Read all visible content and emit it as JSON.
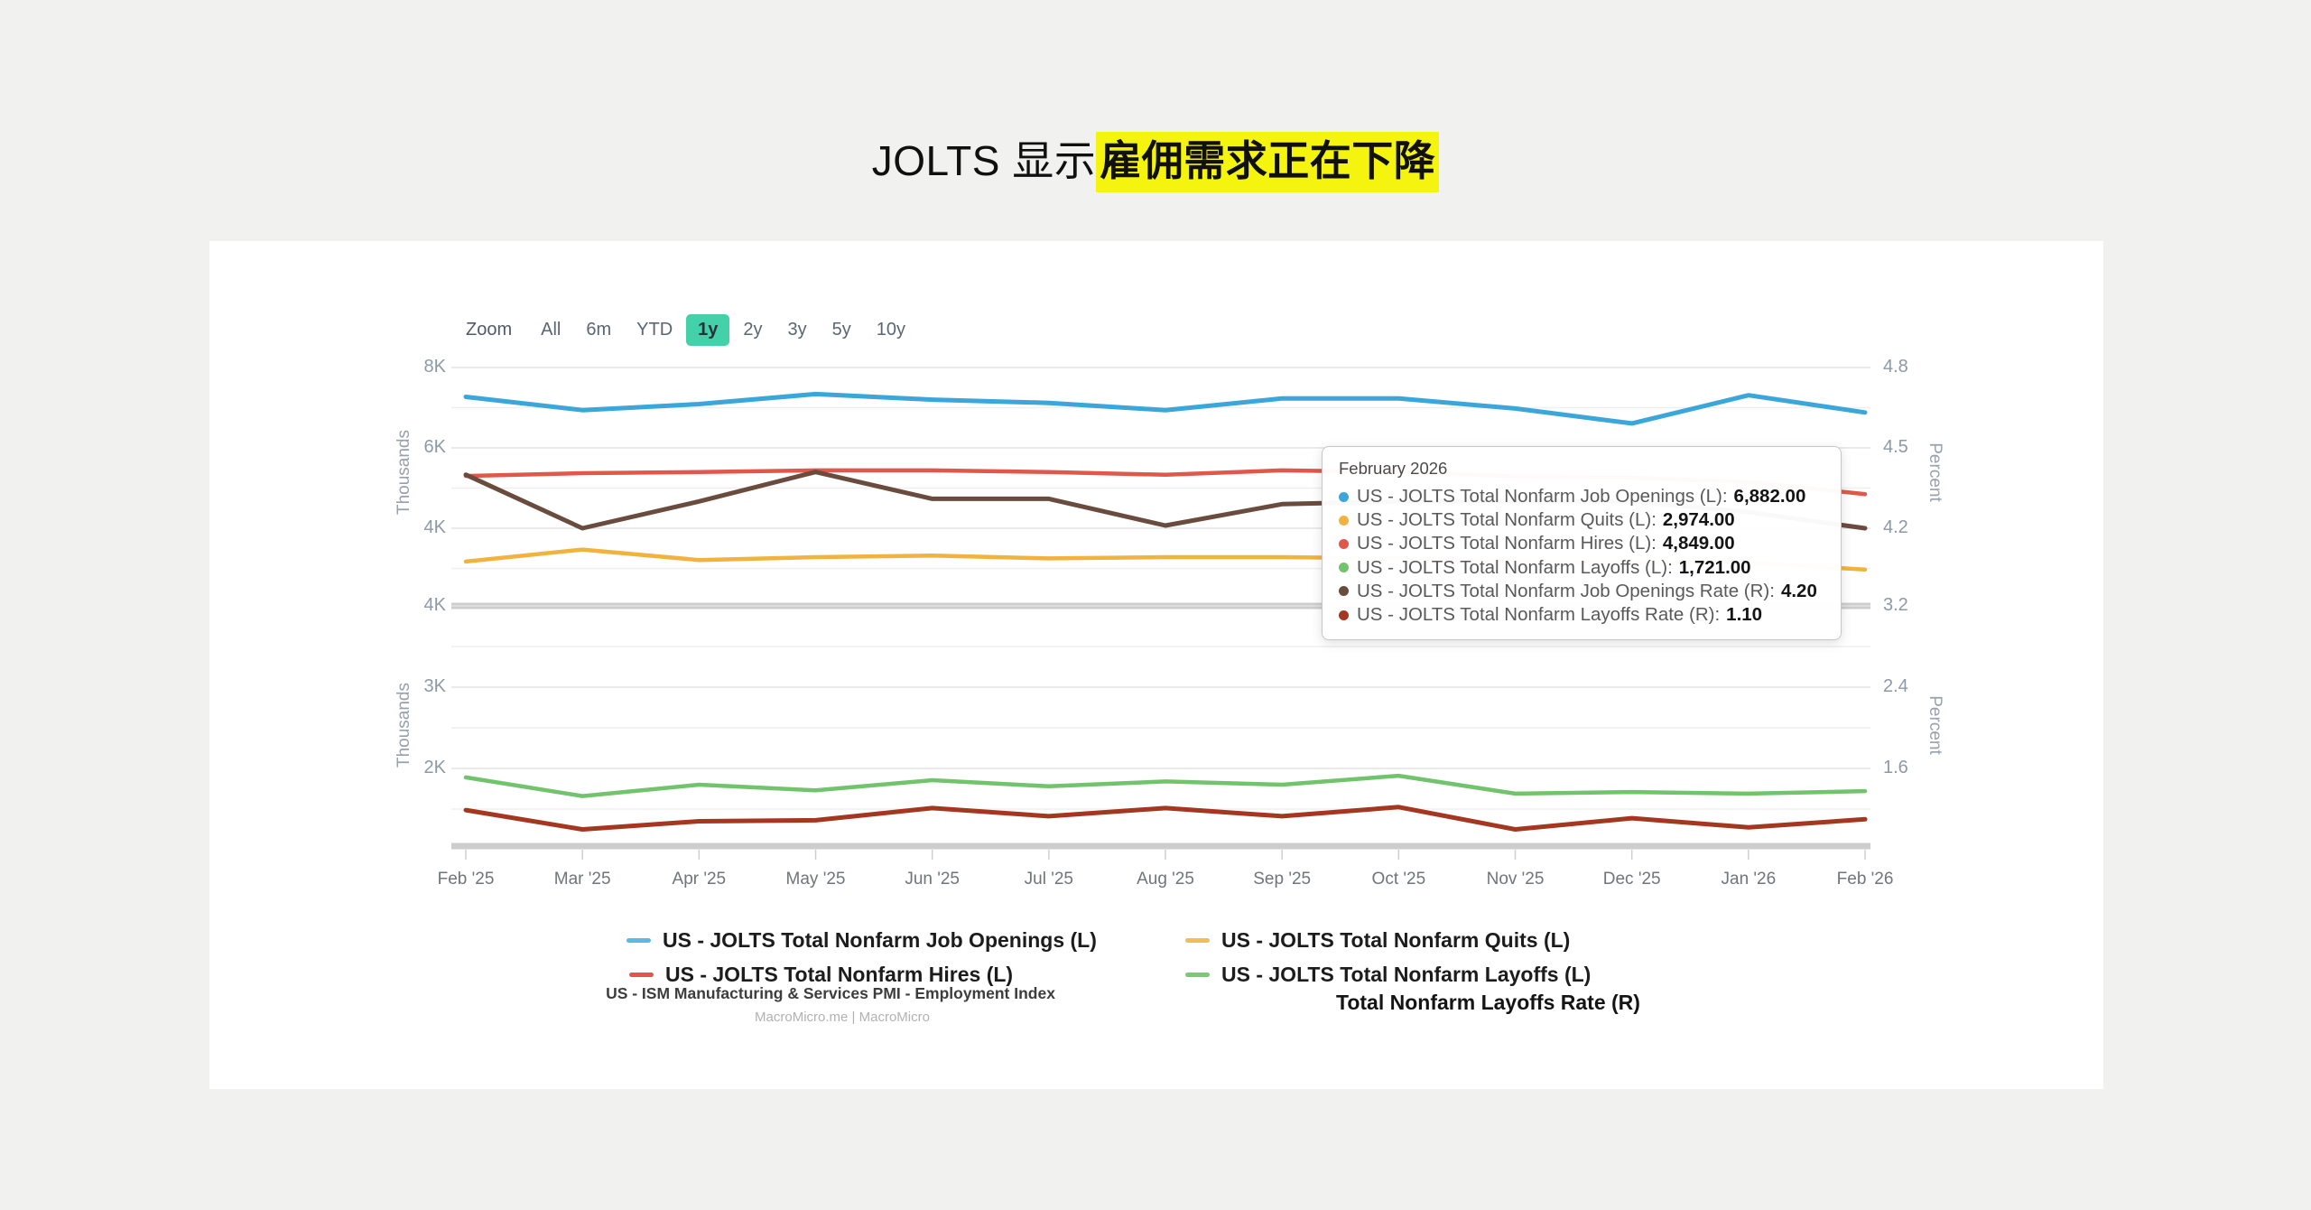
{
  "page": {
    "title_plain": "JOLTS 显示",
    "title_highlight": "雇佣需求正在下降",
    "highlight_color": "#f4f40e"
  },
  "toolbar": {
    "zoom_label": "Zoom",
    "ranges": [
      "All",
      "6m",
      "YTD",
      "1y",
      "2y",
      "3y",
      "5y",
      "10y"
    ],
    "selected": "1y",
    "selected_bg": "#43d1a9"
  },
  "tooltip": {
    "title": "February 2026",
    "rows": [
      {
        "label": "US - JOLTS Total Nonfarm Job Openings (L)",
        "value": "6,882.00",
        "color": "#3aa6da"
      },
      {
        "label": "US - JOLTS Total Nonfarm Quits (L)",
        "value": "2,974.00",
        "color": "#f2b23e"
      },
      {
        "label": "US - JOLTS Total Nonfarm Hires (L)",
        "value": "4,849.00",
        "color": "#e1584b"
      },
      {
        "label": "US - JOLTS Total Nonfarm Layoffs (L)",
        "value": "1,721.00",
        "color": "#71c36c"
      },
      {
        "label": "US - JOLTS Total Nonfarm Job Openings Rate (R)",
        "value": "4.20",
        "color": "#6a4c3e"
      },
      {
        "label": "US - JOLTS Total Nonfarm Layoffs Rate (R)",
        "value": "1.10",
        "color": "#a53620"
      }
    ]
  },
  "legend": {
    "items": [
      {
        "label": "US - JOLTS Total Nonfarm Job Openings (L)",
        "color": "#5fb8e3"
      },
      {
        "label": "US - JOLTS Total Nonfarm Quits (L)",
        "color": "#f5bd55"
      },
      {
        "label": "US - JOLTS Total Nonfarm Hires (L)",
        "color": "#e2574b"
      },
      {
        "label": "US - JOLTS Total Nonfarm Layoffs (L)",
        "color": "#7cc878"
      }
    ]
  },
  "footer": {
    "subtitle": "US - ISM Manufacturing & Services PMI - Employment Index",
    "partial_legend": "Total Nonfarm Layoffs Rate (R)",
    "watermark": "MacroMicro.me | MacroMicro"
  },
  "chart_data": {
    "type": "line",
    "x": [
      "Feb '25",
      "Mar '25",
      "Apr '25",
      "May '25",
      "Jun '25",
      "Jul '25",
      "Aug '25",
      "Sep '25",
      "Oct '25",
      "Nov '25",
      "Dec '25",
      "Jan '26",
      "Feb '26"
    ],
    "grid": true,
    "legend_position": "bottom",
    "panes": [
      {
        "left_axis": {
          "title": "Thousands",
          "unit": "thousands",
          "ticks": [
            {
              "value": 8000,
              "label": "8K"
            },
            {
              "value": 6000,
              "label": "6K"
            },
            {
              "value": 4000,
              "label": "4K"
            }
          ],
          "range": [
            2070,
            8000
          ]
        },
        "right_axis": {
          "title": "Percent",
          "unit": "percent",
          "ticks": [
            {
              "value": 4.8,
              "label": "4.8"
            },
            {
              "value": 4.5,
              "label": "4.5"
            },
            {
              "value": 4.2,
              "label": "4.2"
            }
          ],
          "range": [
            3.91,
            4.8
          ]
        }
      },
      {
        "left_axis": {
          "title": "Thousands",
          "unit": "thousands",
          "ticks": [
            {
              "value": 4000,
              "label": "4K"
            },
            {
              "value": 3000,
              "label": "3K"
            },
            {
              "value": 2000,
              "label": "2K"
            }
          ],
          "range": [
            1040,
            4000
          ]
        },
        "right_axis": {
          "title": "Percent",
          "unit": "percent",
          "ticks": [
            {
              "value": 3.2,
              "label": "3.2"
            },
            {
              "value": 2.4,
              "label": "2.4"
            },
            {
              "value": 1.6,
              "label": "1.6"
            }
          ],
          "range": [
            0.84,
            3.2
          ]
        }
      }
    ],
    "series": [
      {
        "name": "US - JOLTS Total Nonfarm Job Openings (L)",
        "pane": 0,
        "axis": "left",
        "color": "#3aa6da",
        "width": 5,
        "values": [
          7270,
          6940,
          7090,
          7340,
          7200,
          7120,
          6940,
          7230,
          7230,
          6980,
          6610,
          7310,
          6882
        ]
      },
      {
        "name": "US - JOLTS Total Nonfarm Quits (L)",
        "pane": 0,
        "axis": "left",
        "color": "#f2b23e",
        "width": 4.5,
        "values": [
          3170,
          3470,
          3210,
          3280,
          3320,
          3250,
          3280,
          3280,
          3250,
          3170,
          3140,
          3140,
          2974
        ]
      },
      {
        "name": "US - JOLTS Total Nonfarm Hires (L)",
        "pane": 0,
        "axis": "left",
        "color": "#e1584b",
        "width": 4.5,
        "values": [
          5300,
          5370,
          5400,
          5440,
          5440,
          5400,
          5330,
          5440,
          5400,
          5290,
          5260,
          5150,
          4849
        ]
      },
      {
        "name": "US - JOLTS Total Nonfarm Job Openings Rate (R)",
        "pane": 0,
        "axis": "right",
        "color": "#6a4c3e",
        "width": 5,
        "values": [
          4.4,
          4.2,
          4.3,
          4.41,
          4.31,
          4.31,
          4.21,
          4.29,
          4.3,
          4.3,
          4.3,
          4.26,
          4.2
        ]
      },
      {
        "name": "US - JOLTS Total Nonfarm Layoffs (L)",
        "pane": 1,
        "axis": "left",
        "color": "#71c36c",
        "width": 4.5,
        "values": [
          1890,
          1660,
          1800,
          1730,
          1855,
          1780,
          1840,
          1800,
          1910,
          1690,
          1710,
          1690,
          1721
        ]
      },
      {
        "name": "US - JOLTS Total Nonfarm Layoffs Rate (R)",
        "pane": 1,
        "axis": "right",
        "color": "#a53620",
        "width": 5,
        "values": [
          1.19,
          1.0,
          1.08,
          1.09,
          1.21,
          1.13,
          1.21,
          1.13,
          1.22,
          1.0,
          1.11,
          1.02,
          1.1
        ]
      }
    ]
  }
}
